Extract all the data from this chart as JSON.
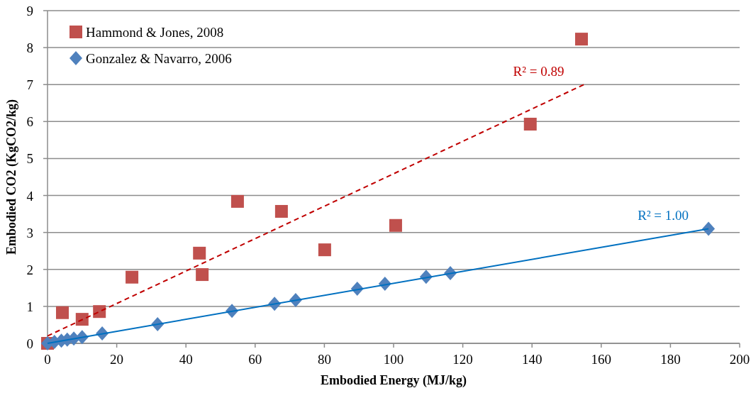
{
  "chart_data": {
    "type": "scatter",
    "xlabel": "Embodied Energy (MJ/kg)",
    "ylabel": "Embodied CO2 (KgCO2/kg)",
    "xlim": [
      0,
      200
    ],
    "xticks": [
      0,
      20,
      40,
      60,
      80,
      100,
      120,
      140,
      160,
      180,
      200
    ],
    "ylim": [
      0,
      9
    ],
    "yticks": [
      0,
      1,
      2,
      3,
      4,
      5,
      6,
      7,
      8,
      9
    ],
    "grid": "y",
    "legend": "top left",
    "series": [
      {
        "name": "Hammond & Jones, 2008",
        "color": "#c0504d",
        "marker": "square",
        "x": [
          0,
          4.3,
          10,
          15,
          24.4,
          43.9,
          44.7,
          54.9,
          67.6,
          80.1,
          100.6,
          139.5,
          154.3
        ],
        "values": [
          0,
          0.83,
          0.65,
          0.86,
          1.79,
          2.44,
          1.86,
          3.84,
          3.57,
          2.53,
          3.19,
          5.93,
          8.23
        ]
      },
      {
        "name": "Gonzalez & Navarro, 2006",
        "color": "#4f81bd",
        "marker": "diamond",
        "x": [
          0,
          2,
          4,
          5.7,
          7.6,
          10,
          15.8,
          31.8,
          53.3,
          65.6,
          71.7,
          89.5,
          97.5,
          109.4,
          116.4,
          191
        ],
        "values": [
          0,
          0.04,
          0.07,
          0.1,
          0.13,
          0.17,
          0.27,
          0.52,
          0.88,
          1.07,
          1.17,
          1.48,
          1.61,
          1.8,
          1.9,
          3.1
        ]
      },
      {
        "type": "line",
        "color": "#c00000",
        "line_style": "dashed",
        "marker": "none",
        "x": [
          0,
          155
        ],
        "values": [
          0.2,
          7.0
        ]
      },
      {
        "type": "line",
        "color": "#0070c0",
        "line_style": "solid",
        "marker": "none",
        "x": [
          0,
          191
        ],
        "values": [
          0,
          3.1
        ]
      }
    ],
    "annotations": [
      {
        "text": "R² = 0.89",
        "x": 155,
        "y": 7.0
      },
      {
        "text": "R² = 1.00",
        "x": 191,
        "y": 3.1
      }
    ]
  }
}
